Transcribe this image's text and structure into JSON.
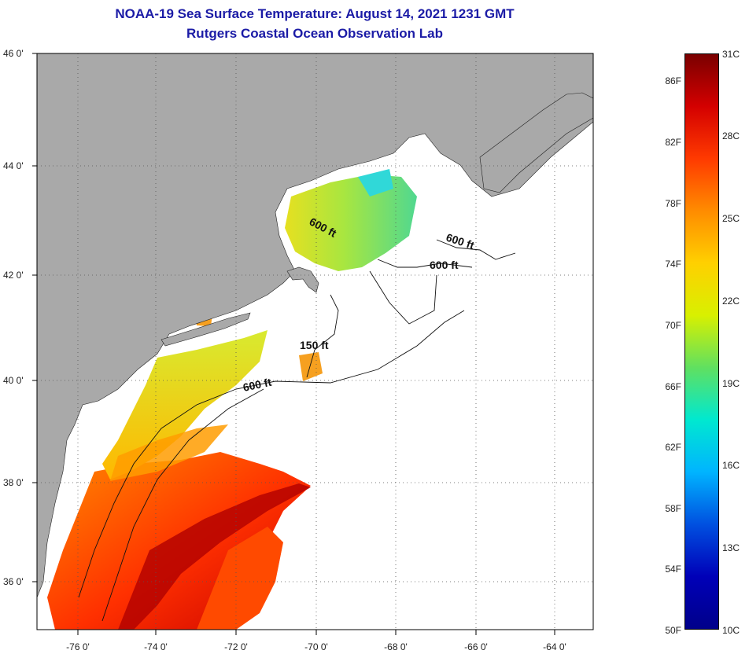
{
  "header": {
    "title": "NOAA-19 Sea Surface Temperature:  August 14, 2021 1231 GMT",
    "subtitle": "Rutgers Coastal Ocean Observation Lab"
  },
  "map": {
    "lat_range": [
      35,
      46
    ],
    "lon_range": [
      -77,
      -63
    ],
    "lat_labels": [
      "46 0'",
      "44 0'",
      "42 0'",
      "40 0'",
      "38 0'",
      "36 0'"
    ],
    "lon_labels": [
      "-76 0'",
      "-74 0'",
      "-72 0'",
      "-70 0'",
      "-68 0'",
      "-66 0'",
      "-64 0'"
    ],
    "contour_labels": {
      "gulf_maine_1": "600 ft",
      "gulf_maine_2": "600 ft",
      "georges": "600 ft",
      "shelf_150": "150 ft",
      "shelf_600": "600 ft"
    },
    "colors": {
      "land": "#a9a9a9",
      "water_nodata": "#ffffff",
      "grid": "#555555"
    }
  },
  "colorbar": {
    "fahrenheit_labels": [
      "86F",
      "82F",
      "78F",
      "74F",
      "70F",
      "66F",
      "62F",
      "58F",
      "54F",
      "50F"
    ],
    "celsius_labels": [
      "31C",
      "28C",
      "25C",
      "22C",
      "19C",
      "16C",
      "13C",
      "10C"
    ],
    "min_c": 10,
    "max_c": 31,
    "gradient_stops": [
      "#7a0000",
      "#d40000",
      "#ff3a00",
      "#ff8c00",
      "#ffd000",
      "#d8f000",
      "#60e060",
      "#00e8d0",
      "#00b4ff",
      "#0050e0",
      "#0000b8",
      "#00008a"
    ]
  }
}
